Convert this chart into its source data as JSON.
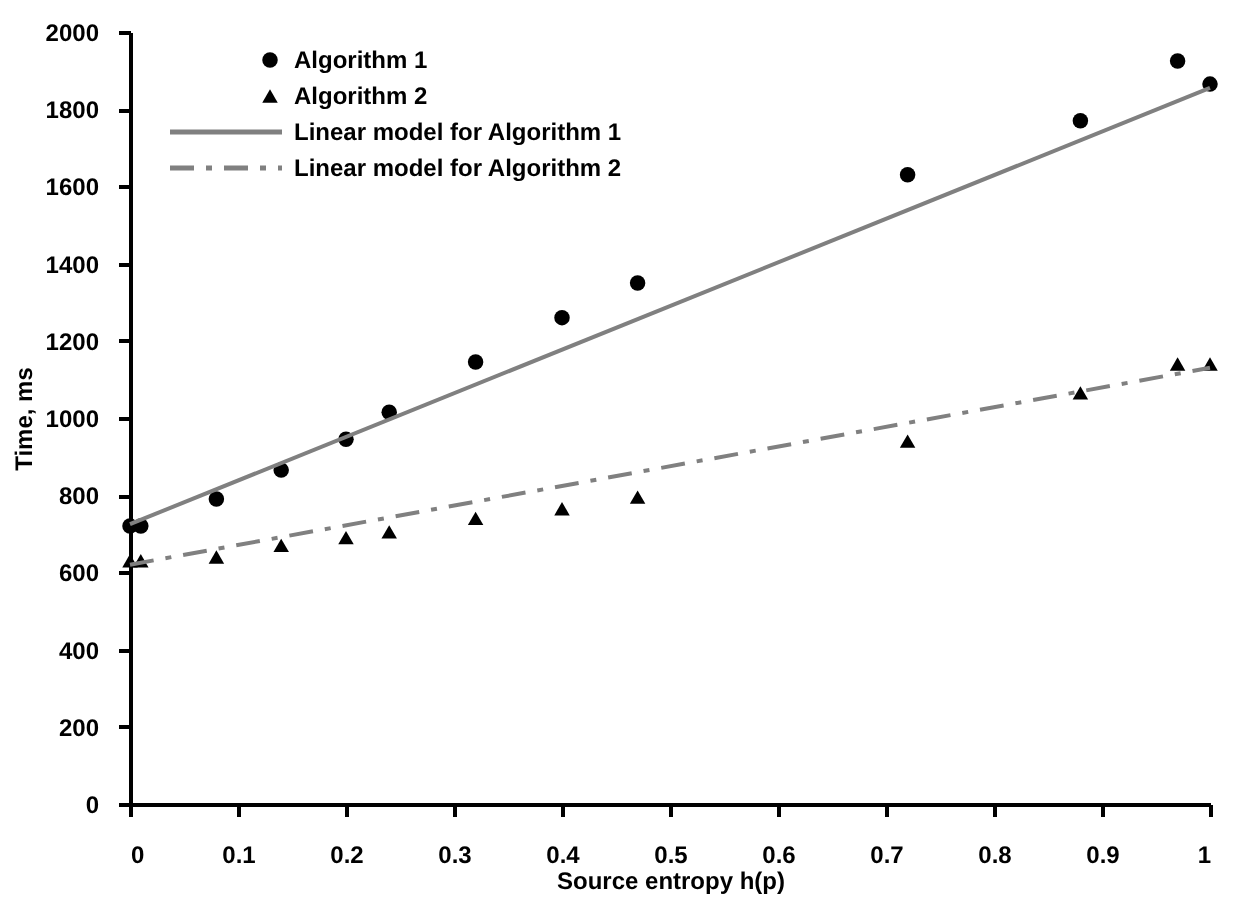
{
  "chart_data": {
    "type": "scatter",
    "xlabel": "Source entropy h(p)",
    "ylabel": "Time, ms",
    "xlim": [
      0,
      1
    ],
    "xticks": [
      0,
      0.1,
      0.2,
      0.3,
      0.4,
      0.5,
      0.6,
      0.7,
      0.8,
      0.9,
      1
    ],
    "ylim": [
      0,
      2000
    ],
    "yticks": [
      0,
      200,
      400,
      600,
      800,
      1000,
      1200,
      1400,
      1600,
      1800,
      2000
    ],
    "grid": false,
    "legend": "top left",
    "series": [
      {
        "name": "Algorithm 1",
        "marker": "circle",
        "color": "#000000",
        "x": [
          0,
          0.01,
          0.08,
          0.14,
          0.2,
          0.24,
          0.32,
          0.4,
          0.47,
          0.72,
          0.88,
          0.97,
          1.0
        ],
        "values": [
          720,
          720,
          790,
          865,
          945,
          1015,
          1145,
          1260,
          1350,
          1630,
          1770,
          1925,
          1865
        ]
      },
      {
        "name": "Algorithm 2",
        "marker": "triangle",
        "color": "#000000",
        "x": [
          0,
          0.01,
          0.08,
          0.14,
          0.2,
          0.24,
          0.32,
          0.4,
          0.47,
          0.72,
          0.88,
          0.97,
          1.0
        ],
        "values": [
          630,
          630,
          640,
          670,
          690,
          705,
          740,
          765,
          795,
          940,
          1065,
          1140,
          1140
        ]
      },
      {
        "name": "Linear model for Algorithm 1",
        "type": "line",
        "line_style": "solid",
        "color": "#808080",
        "x": [
          0,
          1
        ],
        "values": [
          725,
          1855
        ]
      },
      {
        "name": "Linear model for Algorithm 2",
        "type": "line",
        "line_style": "dashed",
        "color": "#808080",
        "x": [
          0,
          1
        ],
        "values": [
          620,
          1130
        ]
      }
    ]
  }
}
